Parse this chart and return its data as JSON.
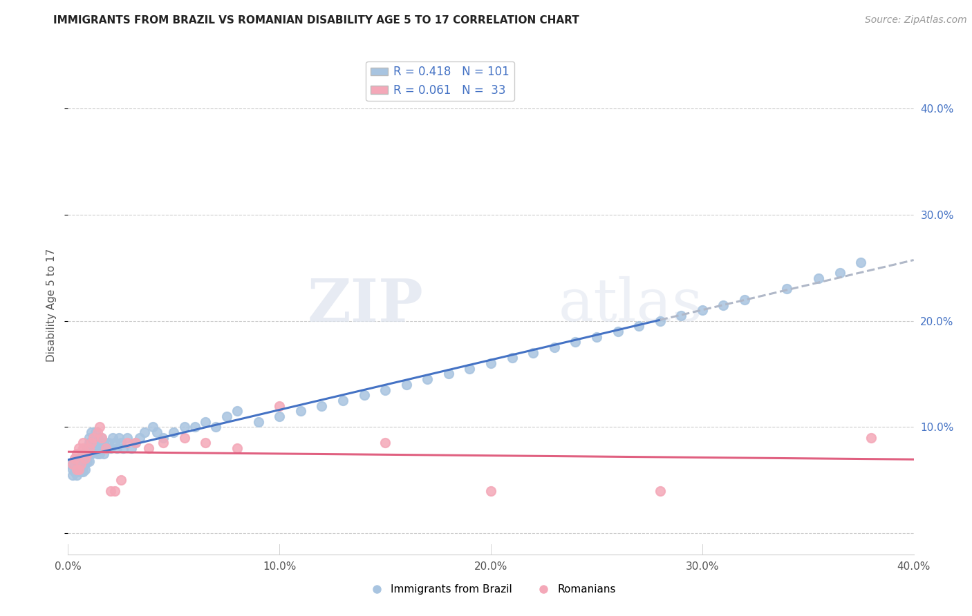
{
  "title": "IMMIGRANTS FROM BRAZIL VS ROMANIAN DISABILITY AGE 5 TO 17 CORRELATION CHART",
  "source": "Source: ZipAtlas.com",
  "ylabel": "Disability Age 5 to 17",
  "xlim": [
    0.0,
    0.4
  ],
  "ylim": [
    -0.02,
    0.45
  ],
  "xticks": [
    0.0,
    0.1,
    0.2,
    0.3,
    0.4
  ],
  "yticks": [
    0.0,
    0.1,
    0.2,
    0.3,
    0.4
  ],
  "xticklabels": [
    "0.0%",
    "10.0%",
    "20.0%",
    "30.0%",
    "40.0%"
  ],
  "yticklabels_right": [
    "",
    "10.0%",
    "20.0%",
    "30.0%",
    "40.0%"
  ],
  "brazil_R": 0.418,
  "brazil_N": 101,
  "romanian_R": 0.061,
  "romanian_N": 33,
  "brazil_color": "#a8c4e0",
  "romanian_color": "#f4a8b8",
  "brazil_line_color": "#4472c4",
  "romanian_line_color": "#e06080",
  "brazil_line_dash_color": "#b0b8c8",
  "watermark_zip": "ZIP",
  "watermark_atlas": "atlas",
  "brazil_x": [
    0.001,
    0.002,
    0.002,
    0.003,
    0.003,
    0.003,
    0.004,
    0.004,
    0.004,
    0.005,
    0.005,
    0.005,
    0.005,
    0.006,
    0.006,
    0.006,
    0.006,
    0.007,
    0.007,
    0.007,
    0.007,
    0.007,
    0.008,
    0.008,
    0.008,
    0.008,
    0.009,
    0.009,
    0.009,
    0.01,
    0.01,
    0.01,
    0.01,
    0.011,
    0.011,
    0.011,
    0.012,
    0.012,
    0.012,
    0.013,
    0.013,
    0.014,
    0.014,
    0.015,
    0.015,
    0.016,
    0.016,
    0.017,
    0.017,
    0.018,
    0.019,
    0.02,
    0.021,
    0.022,
    0.023,
    0.024,
    0.025,
    0.026,
    0.028,
    0.03,
    0.032,
    0.034,
    0.036,
    0.04,
    0.042,
    0.045,
    0.05,
    0.055,
    0.06,
    0.065,
    0.07,
    0.075,
    0.08,
    0.09,
    0.1,
    0.11,
    0.12,
    0.13,
    0.14,
    0.15,
    0.16,
    0.17,
    0.18,
    0.19,
    0.2,
    0.21,
    0.22,
    0.23,
    0.24,
    0.25,
    0.26,
    0.27,
    0.28,
    0.29,
    0.3,
    0.31,
    0.32,
    0.34,
    0.355,
    0.365,
    0.375
  ],
  "brazil_y": [
    0.065,
    0.06,
    0.055,
    0.065,
    0.058,
    0.07,
    0.055,
    0.068,
    0.06,
    0.062,
    0.058,
    0.07,
    0.065,
    0.06,
    0.065,
    0.07,
    0.058,
    0.06,
    0.065,
    0.07,
    0.058,
    0.075,
    0.068,
    0.072,
    0.065,
    0.06,
    0.075,
    0.068,
    0.08,
    0.075,
    0.09,
    0.085,
    0.068,
    0.095,
    0.085,
    0.075,
    0.09,
    0.08,
    0.085,
    0.095,
    0.08,
    0.09,
    0.075,
    0.085,
    0.075,
    0.08,
    0.09,
    0.075,
    0.085,
    0.08,
    0.085,
    0.08,
    0.09,
    0.085,
    0.08,
    0.09,
    0.085,
    0.08,
    0.09,
    0.08,
    0.085,
    0.09,
    0.095,
    0.1,
    0.095,
    0.09,
    0.095,
    0.1,
    0.1,
    0.105,
    0.1,
    0.11,
    0.115,
    0.105,
    0.11,
    0.115,
    0.12,
    0.125,
    0.13,
    0.135,
    0.14,
    0.145,
    0.15,
    0.155,
    0.16,
    0.165,
    0.17,
    0.175,
    0.18,
    0.185,
    0.19,
    0.195,
    0.2,
    0.205,
    0.21,
    0.215,
    0.22,
    0.23,
    0.24,
    0.245,
    0.255
  ],
  "romanian_x": [
    0.002,
    0.003,
    0.004,
    0.004,
    0.005,
    0.005,
    0.006,
    0.007,
    0.007,
    0.008,
    0.009,
    0.01,
    0.011,
    0.012,
    0.014,
    0.015,
    0.016,
    0.018,
    0.02,
    0.022,
    0.025,
    0.028,
    0.032,
    0.038,
    0.045,
    0.055,
    0.065,
    0.08,
    0.1,
    0.15,
    0.2,
    0.28,
    0.38
  ],
  "romanian_y": [
    0.065,
    0.07,
    0.06,
    0.075,
    0.06,
    0.08,
    0.065,
    0.08,
    0.085,
    0.07,
    0.075,
    0.08,
    0.085,
    0.09,
    0.095,
    0.1,
    0.09,
    0.08,
    0.04,
    0.04,
    0.05,
    0.085,
    0.085,
    0.08,
    0.085,
    0.09,
    0.085,
    0.08,
    0.12,
    0.085,
    0.04,
    0.04,
    0.09
  ]
}
